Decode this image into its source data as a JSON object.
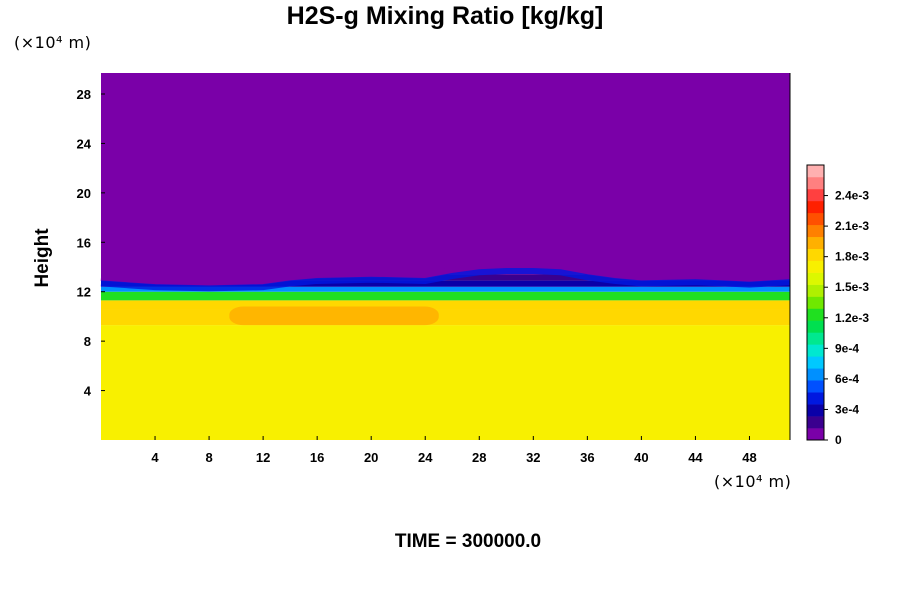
{
  "title": "H2S-g Mixing Ratio [kg/kg]",
  "footer": "TIME = 300000.0",
  "chart_data": {
    "type": "heatmap",
    "title": "H2S-g Mixing Ratio [kg/kg]",
    "ylabel": "Height",
    "x_unit_label": "(×10⁴ m)",
    "y_unit_label": "(×10⁴ m)",
    "xlim": [
      0,
      51
    ],
    "ylim": [
      0,
      29.7
    ],
    "x_ticks": [
      4,
      8,
      12,
      16,
      20,
      24,
      28,
      32,
      36,
      40,
      44,
      48
    ],
    "x_tick_labels": [
      "4",
      "8",
      "12",
      "16",
      "20",
      "24",
      "28",
      "32",
      "36",
      "40",
      "44",
      "48"
    ],
    "y_ticks": [
      4,
      8,
      12,
      16,
      20,
      24,
      28
    ],
    "y_tick_labels": [
      "4",
      "8",
      "12",
      "16",
      "20",
      "24",
      "28"
    ],
    "colorbar": {
      "min": 0,
      "max": 0.0027,
      "tick_values": [
        0,
        0.0003,
        0.0006,
        0.0009,
        0.0012,
        0.0015,
        0.0018,
        0.0021,
        0.0024
      ],
      "tick_labels": [
        "0",
        "3e-4",
        "6e-4",
        "9e-4",
        "1.2e-3",
        "1.5e-3",
        "1.8e-3",
        "2.1e-3",
        "2.4e-3"
      ],
      "colors": [
        "#7a00a8",
        "#3a008f",
        "#0a00a8",
        "#0018e0",
        "#0050ff",
        "#0090ff",
        "#00c8ff",
        "#00e8d0",
        "#00e890",
        "#00e050",
        "#20e020",
        "#70e800",
        "#b0f000",
        "#dcf800",
        "#f8f000",
        "#ffd800",
        "#ffb000",
        "#ff8000",
        "#ff5000",
        "#ff2000",
        "#ff4040",
        "#ff8080",
        "#ffb0b0"
      ]
    },
    "field_profile": [
      {
        "y_from": 0,
        "y_to": 9.3,
        "value": 0.00171
      },
      {
        "y_from": 9.3,
        "y_to": 10.6,
        "value": 0.00186
      },
      {
        "y_from": 10.6,
        "y_to": 11.3,
        "value": 0.00177
      },
      {
        "y_from": 11.3,
        "y_to": 12.0,
        "value": 0.0012
      },
      {
        "y_from": 12.0,
        "y_to": 12.4,
        "value": 0.0007
      },
      {
        "y_from": 12.4,
        "y_to": 12.9,
        "value": 0.00035
      },
      {
        "y_from": 12.9,
        "y_to": 13.4,
        "value": 0.00012
      },
      {
        "y_from": 13.4,
        "y_to": 29.7,
        "value": 0.0
      }
    ],
    "max_patch": {
      "x_from": 9.5,
      "x_to": 25,
      "y_from": 9.3,
      "y_to": 10.8,
      "value": 0.00195
    },
    "interface_height": {
      "x": [
        0,
        4,
        8,
        12,
        14,
        16,
        20,
        24,
        26,
        28,
        30,
        32,
        34,
        36,
        38,
        40,
        44,
        48,
        51
      ],
      "y": [
        13.4,
        13.1,
        13.0,
        13.1,
        13.4,
        13.6,
        13.7,
        13.6,
        14.0,
        14.3,
        14.4,
        14.4,
        14.3,
        13.9,
        13.6,
        13.4,
        13.5,
        13.3,
        13.5
      ]
    }
  }
}
